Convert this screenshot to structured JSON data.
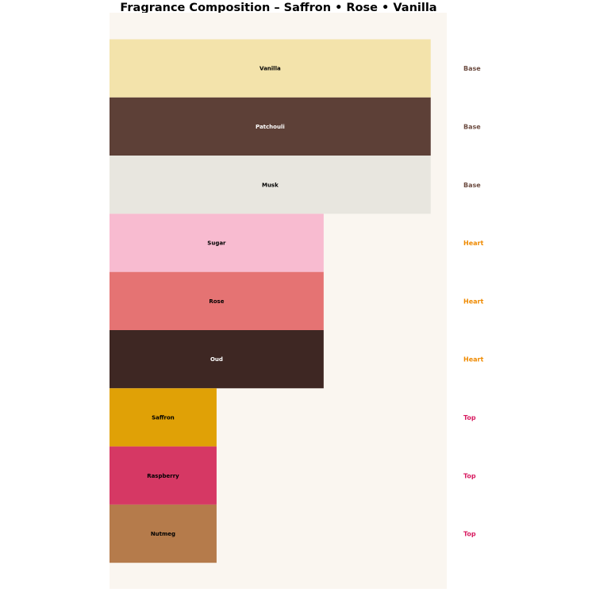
{
  "chart_data": {
    "type": "bar",
    "orientation": "horizontal",
    "title": "Fragrance Composition – Saffron • Rose • Vanilla",
    "xlabel": "",
    "ylabel": "",
    "xlim": [
      0,
      3.15
    ],
    "grid": false,
    "axes_visible": false,
    "background_color": "#faf6f0",
    "categories": [
      "Vanilla",
      "Patchouli",
      "Musk",
      "Sugar",
      "Rose",
      "Oud",
      "Saffron",
      "Raspberry",
      "Nutmeg"
    ],
    "values": [
      3,
      3,
      3,
      2,
      2,
      2,
      1,
      1,
      1
    ],
    "tiers": [
      "Base",
      "Base",
      "Base",
      "Heart",
      "Heart",
      "Heart",
      "Top",
      "Top",
      "Top"
    ],
    "bar_colors": [
      "#f3e3ab",
      "#5d4037",
      "#e8e6df",
      "#f8bbd0",
      "#e57373",
      "#3e2723",
      "#e0a106",
      "#d63864",
      "#b57b4b"
    ],
    "label_colors": [
      "#000000",
      "#ffffff",
      "#000000",
      "#000000",
      "#000000",
      "#ffffff",
      "#000000",
      "#000000",
      "#000000"
    ],
    "tier_colors": {
      "Base": "#6d4c41",
      "Heart": "#ef8a00",
      "Top": "#d81b60"
    }
  }
}
